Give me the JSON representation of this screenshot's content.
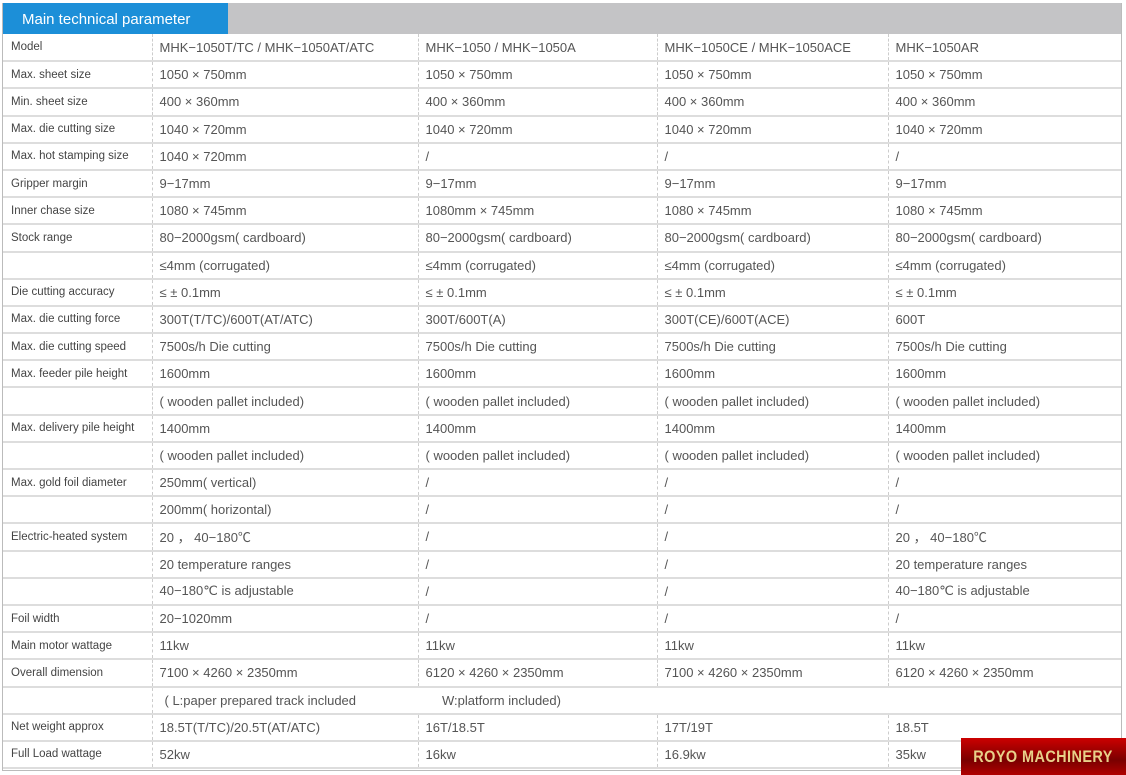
{
  "title": "Main technical parameter",
  "logo": "ROYO MACHINERY",
  "rows": [
    [
      "Model",
      "MHK−1050T/TC / MHK−1050AT/ATC",
      "MHK−1050 / MHK−1050A",
      "MHK−1050CE / MHK−1050ACE",
      "MHK−1050AR"
    ],
    [
      "Max. sheet size",
      "1050 × 750mm",
      "1050 × 750mm",
      "1050 × 750mm",
      "1050 × 750mm"
    ],
    [
      "Min. sheet size",
      "400 × 360mm",
      "400 × 360mm",
      "400 × 360mm",
      "400 × 360mm"
    ],
    [
      "Max. die cutting size",
      "1040 × 720mm",
      "1040 × 720mm",
      "1040 × 720mm",
      "1040 × 720mm"
    ],
    [
      "Max. hot stamping size",
      "1040 × 720mm",
      "/",
      "/",
      "/"
    ],
    [
      "Gripper margin",
      "9−17mm",
      "9−17mm",
      "9−17mm",
      "9−17mm"
    ],
    [
      "Inner chase size",
      "1080 × 745mm",
      "1080mm × 745mm",
      "1080 × 745mm",
      "1080 × 745mm"
    ],
    [
      "Stock range",
      "80−2000gsm( cardboard)",
      "80−2000gsm( cardboard)",
      "80−2000gsm( cardboard)",
      "80−2000gsm( cardboard)"
    ],
    [
      "",
      "≤4mm (corrugated)",
      "≤4mm (corrugated)",
      "≤4mm (corrugated)",
      "≤4mm (corrugated)"
    ],
    [
      "Die cutting accuracy",
      "≤ ± 0.1mm",
      "≤ ± 0.1mm",
      "≤ ± 0.1mm",
      "≤ ± 0.1mm"
    ],
    [
      "Max. die cutting force",
      "300T(T/TC)/600T(AT/ATC)",
      "300T/600T(A)",
      "300T(CE)/600T(ACE)",
      "600T"
    ],
    [
      "Max. die cutting speed",
      "7500s/h Die cutting",
      "7500s/h Die cutting",
      "7500s/h Die cutting",
      "7500s/h Die cutting"
    ],
    [
      "Max. feeder pile height",
      "1600mm",
      "1600mm",
      "1600mm",
      "1600mm"
    ],
    [
      "",
      "( wooden pallet included)",
      "( wooden pallet included)",
      "( wooden pallet included)",
      "( wooden pallet included)"
    ],
    [
      "Max. delivery pile height",
      "1400mm",
      "1400mm",
      "1400mm",
      "1400mm"
    ],
    [
      "",
      "( wooden pallet included)",
      "( wooden pallet included)",
      "( wooden pallet included)",
      "( wooden pallet included)"
    ],
    [
      "Max. gold foil diameter",
      "250mm( vertical)",
      "/",
      "/",
      "/"
    ],
    [
      "",
      "200mm( horizontal)",
      "/",
      "/",
      "/"
    ],
    [
      "Electric-heated system",
      "20 ， 40−180℃",
      "/",
      "/",
      "20 ， 40−180℃"
    ],
    [
      "",
      "20 temperature ranges",
      "/",
      "/",
      "20 temperature ranges"
    ],
    [
      "",
      "40−180℃ is adjustable",
      "/",
      "/",
      "40−180℃ is adjustable"
    ],
    [
      "Foil width",
      "20−1020mm",
      "/",
      "/",
      "/"
    ],
    [
      "Main motor wattage",
      "11kw",
      "11kw",
      "11kw",
      "11kw"
    ],
    [
      "Overall dimension",
      "7100 × 4260 × 2350mm",
      "6120 × 4260 × 2350mm",
      "7100 × 4260 × 2350mm",
      "6120 × 4260 × 2350mm"
    ],
    [
      "",
      "( L:paper prepared track included",
      "W:platform included)",
      "",
      ""
    ],
    [
      "Net weight approx",
      "18.5T(T/TC)/20.5T(AT/ATC)",
      "16T/18.5T",
      "17T/19T",
      "18.5T"
    ],
    [
      "Full Load wattage",
      "52kw",
      "16kw",
      "16.9kw",
      "35kw"
    ]
  ]
}
